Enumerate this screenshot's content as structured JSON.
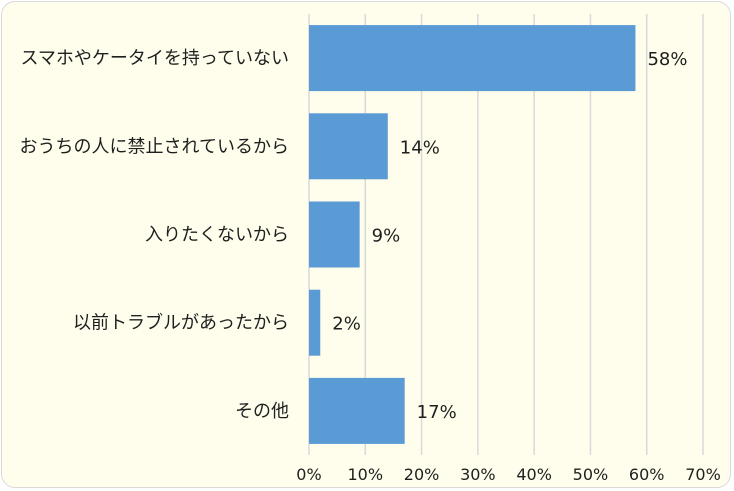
{
  "chart_data": {
    "type": "bar",
    "orientation": "horizontal",
    "categories": [
      "スマホやケータイを持っていない",
      "おうちの人に禁止されているから",
      "入りたくないから",
      "以前トラブルがあったから",
      "その他"
    ],
    "values": [
      58,
      14,
      9,
      2,
      17
    ],
    "value_labels": [
      "58%",
      "14%",
      "9%",
      "2%",
      "17%"
    ],
    "xlim": [
      0,
      70
    ],
    "x_ticks": [
      0,
      10,
      20,
      30,
      40,
      50,
      60,
      70
    ],
    "x_tick_labels": [
      "0%",
      "10%",
      "20%",
      "30%",
      "40%",
      "50%",
      "60%",
      "70%"
    ],
    "grid": "vertical",
    "legend": "none",
    "colors": {
      "bar": "#5b9bd5",
      "background": "#fffeec",
      "gridline": "#d9d9d9",
      "text": "#1f1f1f"
    }
  }
}
